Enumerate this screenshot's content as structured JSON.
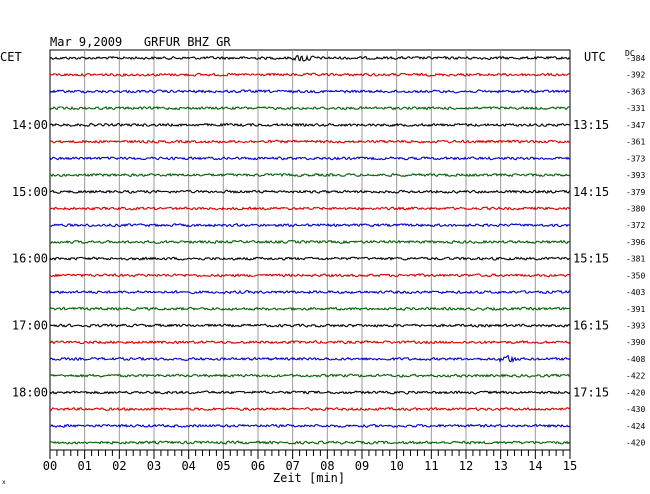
{
  "header": {
    "title": "Mar 9,2009   GRFUR BHZ GR",
    "left_label": "CET",
    "right_label": "UTC",
    "dc_label": "DC"
  },
  "footer": {
    "xlabel": "Zeit [min]",
    "corner_mark": "x"
  },
  "chart_data": {
    "type": "line",
    "title": "Mar 9,2009   GRFUR BHZ GR",
    "xlabel": "Zeit [min]",
    "xlim": [
      0,
      15
    ],
    "x_ticks": [
      "00",
      "01",
      "02",
      "03",
      "04",
      "05",
      "06",
      "07",
      "08",
      "09",
      "10",
      "11",
      "12",
      "13",
      "14",
      "15"
    ],
    "traces_per_hour": 4,
    "colors": [
      "#000000",
      "#d40000",
      "#0000c8",
      "#006400"
    ],
    "left_time_labels": [
      {
        "row": 4,
        "text": "14:00"
      },
      {
        "row": 8,
        "text": "15:00"
      },
      {
        "row": 12,
        "text": "16:00"
      },
      {
        "row": 16,
        "text": "17:00"
      },
      {
        "row": 20,
        "text": "18:00"
      }
    ],
    "right_time_labels": [
      {
        "row": 4,
        "text": "13:15"
      },
      {
        "row": 8,
        "text": "14:15"
      },
      {
        "row": 12,
        "text": "15:15"
      },
      {
        "row": 16,
        "text": "16:15"
      },
      {
        "row": 20,
        "text": "17:15"
      }
    ],
    "dc_offsets": [
      "-384",
      "-392",
      "-363",
      "-331",
      "-347",
      "-361",
      "-373",
      "-393",
      "-379",
      "-380",
      "-372",
      "-396",
      "-381",
      "-350",
      "-403",
      "-391",
      "-393",
      "-390",
      "-408",
      "-422",
      "-420",
      "-430",
      "-424",
      "-420"
    ],
    "events": [
      {
        "row": 0,
        "minute": 7.3,
        "note": "small burst"
      },
      {
        "row": 18,
        "minute": 13.2,
        "note": "local event"
      }
    ],
    "grid": true
  }
}
